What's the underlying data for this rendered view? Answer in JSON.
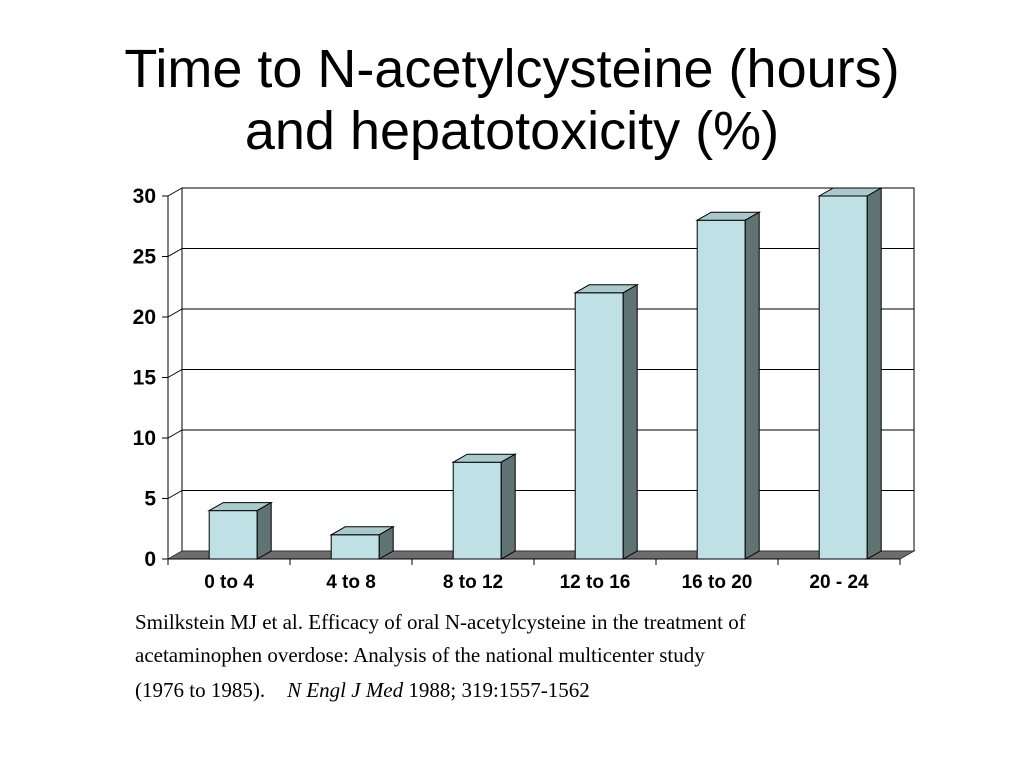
{
  "slide": {
    "title_line1": "Time to N-acetylcysteine (hours)",
    "title_line2": "and hepatotoxicity (%)"
  },
  "chart_data": {
    "type": "bar",
    "categories": [
      "0 to 4",
      "4 to 8",
      "8 to 12",
      "12 to 16",
      "16 to 20",
      "20 - 24"
    ],
    "values": [
      4,
      2,
      8,
      22,
      28,
      30
    ],
    "title": "Time to N-acetylcysteine (hours) and hepatotoxicity (%)",
    "xlabel": "",
    "ylabel": "",
    "ylim": [
      0,
      30
    ],
    "yticks": [
      0,
      5,
      10,
      15,
      20,
      25,
      30
    ],
    "grid": true,
    "style": "3d",
    "colors": {
      "bar_front": "#bfe0e4",
      "bar_top": "#a9c9cc",
      "bar_side": "#5f7373",
      "floor": "#6d6d6d",
      "grid": "#000000"
    }
  },
  "citation": {
    "line1": "Smilkstein MJ et al.  Efficacy of oral N-acetylcysteine in the treatment of",
    "line2": "acetaminophen overdose:  Analysis of the national multicenter study",
    "line3_a": "(1976 to 1985).",
    "line3_journal": "N Engl J Med",
    "line3_b": " 1988; 319:1557-1562"
  }
}
